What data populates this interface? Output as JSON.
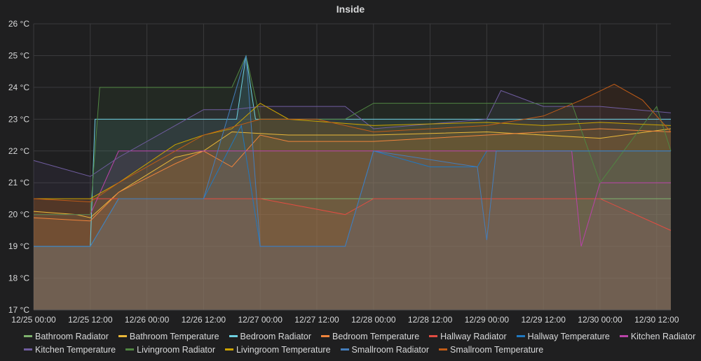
{
  "panel": {
    "title": "Inside"
  },
  "chart_data": {
    "type": "area",
    "title": "Inside",
    "unit": "°C",
    "ylim": [
      17,
      26
    ],
    "y_ticks": [
      "17 °C",
      "18 °C",
      "19 °C",
      "20 °C",
      "21 °C",
      "22 °C",
      "23 °C",
      "24 °C",
      "25 °C",
      "26 °C"
    ],
    "x_ticks": [
      "12/25 00:00",
      "12/25 12:00",
      "12/26 00:00",
      "12/26 12:00",
      "12/27 00:00",
      "12/27 12:00",
      "12/28 00:00",
      "12/28 12:00",
      "12/29 00:00",
      "12/29 12:00",
      "12/30 00:00",
      "12/30 12:00"
    ],
    "x_start": "12/25 00:00",
    "x_end": "12/30 15:00",
    "grid": true,
    "legend_position": "bottom",
    "series": [
      {
        "name": "Bathroom Radiator",
        "color": "#7eb26d",
        "points": [
          [
            "12/25 00:00",
            19
          ],
          [
            "12/25 12:00",
            19
          ],
          [
            "12/25 18:00",
            20.5
          ],
          [
            "12/26 12:00",
            20.5
          ],
          [
            "12/26 18:00",
            20.5
          ],
          [
            "12/27 00:00",
            20.5
          ],
          [
            "12/28 00:00",
            20.5
          ],
          [
            "12/29 00:00",
            20.5
          ],
          [
            "12/30 00:00",
            20.5
          ],
          [
            "12/30 15:00",
            20.5
          ]
        ]
      },
      {
        "name": "Bathroom Temperature",
        "color": "#eab839",
        "points": [
          [
            "12/25 00:00",
            20.1
          ],
          [
            "12/25 09:00",
            20.0
          ],
          [
            "12/25 12:00",
            19.9
          ],
          [
            "12/25 18:00",
            20.7
          ],
          [
            "12/26 06:00",
            21.8
          ],
          [
            "12/26 12:00",
            22.0
          ],
          [
            "12/26 18:00",
            22.6
          ],
          [
            "12/27 06:00",
            22.5
          ],
          [
            "12/28 00:00",
            22.5
          ],
          [
            "12/29 00:00",
            22.6
          ],
          [
            "12/30 00:00",
            22.4
          ],
          [
            "12/30 15:00",
            22.7
          ]
        ]
      },
      {
        "name": "Bedroom Radiator",
        "color": "#6ed0e0",
        "points": [
          [
            "12/25 00:00",
            19
          ],
          [
            "12/25 12:00",
            19
          ],
          [
            "12/25 13:00",
            23.0
          ],
          [
            "12/26 12:00",
            23.0
          ],
          [
            "12/26 19:00",
            23.0
          ],
          [
            "12/26 21:00",
            25.0
          ],
          [
            "12/26 23:00",
            23.0
          ],
          [
            "12/27 06:00",
            23.0
          ],
          [
            "12/28 00:00",
            23.0
          ],
          [
            "12/29 00:00",
            23.0
          ],
          [
            "12/29 12:00",
            23.0
          ],
          [
            "12/30 15:00",
            23.0
          ]
        ]
      },
      {
        "name": "Bedroom Temperature",
        "color": "#ef843c",
        "points": [
          [
            "12/25 00:00",
            19.9
          ],
          [
            "12/25 12:00",
            19.8
          ],
          [
            "12/25 18:00",
            20.7
          ],
          [
            "12/26 06:00",
            21.6
          ],
          [
            "12/26 12:00",
            22.0
          ],
          [
            "12/26 18:00",
            21.5
          ],
          [
            "12/27 00:00",
            22.5
          ],
          [
            "12/27 06:00",
            22.3
          ],
          [
            "12/28 00:00",
            22.3
          ],
          [
            "12/29 00:00",
            22.5
          ],
          [
            "12/30 00:00",
            22.7
          ],
          [
            "12/30 15:00",
            22.6
          ]
        ]
      },
      {
        "name": "Hallway Radiator",
        "color": "#e24d42",
        "points": [
          [
            "12/25 00:00",
            20.5
          ],
          [
            "12/25 12:00",
            20.5
          ],
          [
            "12/26 12:00",
            20.5
          ],
          [
            "12/27 00:00",
            20.5
          ],
          [
            "12/27 18:00",
            20.0
          ],
          [
            "12/28 00:00",
            20.5
          ],
          [
            "12/29 00:00",
            20.5
          ],
          [
            "12/30 00:00",
            20.5
          ],
          [
            "12/30 15:00",
            19.5
          ]
        ]
      },
      {
        "name": "Hallway Temperature",
        "color": "#1f78c1",
        "points": [
          [
            "12/25 00:00",
            19
          ],
          [
            "12/25 12:00",
            19
          ],
          [
            "12/25 18:00",
            20.5
          ],
          [
            "12/26 12:00",
            20.5
          ],
          [
            "12/26 20:00",
            22.8
          ],
          [
            "12/27 00:00",
            19.0
          ],
          [
            "12/27 18:00",
            19.0
          ],
          [
            "12/28 00:00",
            22.0
          ],
          [
            "12/28 12:00",
            21.5
          ],
          [
            "12/28 22:00",
            21.5
          ],
          [
            "12/29 00:00",
            22.0
          ],
          [
            "12/29 12:00",
            22.0
          ],
          [
            "12/30 00:00",
            22.0
          ],
          [
            "12/30 15:00",
            22.0
          ]
        ]
      },
      {
        "name": "Kitchen Radiator",
        "color": "#ba43a9",
        "points": [
          [
            "12/25 00:00",
            20.0
          ],
          [
            "12/25 12:00",
            20.0
          ],
          [
            "12/25 18:00",
            22.0
          ],
          [
            "12/26 12:00",
            22.0
          ],
          [
            "12/27 00:00",
            22.0
          ],
          [
            "12/28 00:00",
            22.0
          ],
          [
            "12/29 00:00",
            22.0
          ],
          [
            "12/29 18:00",
            22.0
          ],
          [
            "12/29 20:00",
            19.0
          ],
          [
            "12/30 00:00",
            21.0
          ],
          [
            "12/30 15:00",
            21.0
          ]
        ]
      },
      {
        "name": "Kitchen Temperature",
        "color": "#705da0",
        "points": [
          [
            "12/25 00:00",
            21.7
          ],
          [
            "12/25 12:00",
            21.2
          ],
          [
            "12/25 18:00",
            21.8
          ],
          [
            "12/26 06:00",
            22.8
          ],
          [
            "12/26 12:00",
            23.3
          ],
          [
            "12/26 18:00",
            23.3
          ],
          [
            "12/27 00:00",
            23.4
          ],
          [
            "12/27 18:00",
            23.4
          ],
          [
            "12/28 00:00",
            22.7
          ],
          [
            "12/29 00:00",
            23.0
          ],
          [
            "12/29 03:00",
            23.9
          ],
          [
            "12/29 12:00",
            23.4
          ],
          [
            "12/30 00:00",
            23.4
          ],
          [
            "12/30 15:00",
            23.2
          ]
        ]
      },
      {
        "name": "Livingroom Radiator",
        "color": "#508642",
        "points": [
          [
            "12/25 00:00",
            20.0
          ],
          [
            "12/25 12:00",
            20.0
          ],
          [
            "12/25 14:00",
            24.0
          ],
          [
            "12/26 18:00",
            24.0
          ],
          [
            "12/26 21:00",
            25.0
          ],
          [
            "12/27 00:00",
            23.0
          ],
          [
            "12/27 18:00",
            23.0
          ],
          [
            "12/28 00:00",
            23.5
          ],
          [
            "12/29 00:00",
            23.5
          ],
          [
            "12/29 18:00",
            23.5
          ],
          [
            "12/30 00:00",
            21.0
          ],
          [
            "12/30 12:00",
            23.4
          ],
          [
            "12/30 15:00",
            22.0
          ]
        ]
      },
      {
        "name": "Livingroom Temperature",
        "color": "#cca300",
        "points": [
          [
            "12/25 00:00",
            20.5
          ],
          [
            "12/25 12:00",
            20.5
          ],
          [
            "12/25 18:00",
            21.0
          ],
          [
            "12/26 06:00",
            22.2
          ],
          [
            "12/26 12:00",
            22.5
          ],
          [
            "12/26 18:00",
            22.7
          ],
          [
            "12/27 00:00",
            23.5
          ],
          [
            "12/27 06:00",
            23.0
          ],
          [
            "12/28 00:00",
            22.8
          ],
          [
            "12/29 00:00",
            22.9
          ],
          [
            "12/29 12:00",
            22.8
          ],
          [
            "12/30 00:00",
            22.9
          ],
          [
            "12/30 15:00",
            22.8
          ]
        ]
      },
      {
        "name": "Smallroom Radiator",
        "color": "#447ebc",
        "points": [
          [
            "12/25 00:00",
            19
          ],
          [
            "12/25 12:00",
            19
          ],
          [
            "12/25 18:00",
            20.5
          ],
          [
            "12/26 12:00",
            20.5
          ],
          [
            "12/26 21:00",
            25.0
          ],
          [
            "12/27 00:00",
            19.0
          ],
          [
            "12/27 18:00",
            19.0
          ],
          [
            "12/28 00:00",
            22.0
          ],
          [
            "12/28 22:00",
            21.5
          ],
          [
            "12/29 00:00",
            19.2
          ],
          [
            "12/29 02:00",
            22.0
          ],
          [
            "12/30 06:00",
            22.0
          ],
          [
            "12/30 15:00",
            22.0
          ]
        ]
      },
      {
        "name": "Smallroom Temperature",
        "color": "#c15c17",
        "points": [
          [
            "12/25 00:00",
            20.5
          ],
          [
            "12/25 12:00",
            20.4
          ],
          [
            "12/25 18:00",
            21.0
          ],
          [
            "12/26 06:00",
            22.0
          ],
          [
            "12/26 12:00",
            22.5
          ],
          [
            "12/27 00:00",
            23.0
          ],
          [
            "12/27 12:00",
            23.0
          ],
          [
            "12/28 00:00",
            22.6
          ],
          [
            "12/29 00:00",
            22.8
          ],
          [
            "12/29 12:00",
            23.1
          ],
          [
            "12/29 20:00",
            23.6
          ],
          [
            "12/30 03:00",
            24.1
          ],
          [
            "12/30 09:00",
            23.6
          ],
          [
            "12/30 15:00",
            22.6
          ]
        ]
      }
    ]
  },
  "legend_rows": [
    [
      "Bathroom Radiator",
      "Bathroom Temperature",
      "Bedroom Radiator",
      "Bedroom Temperature",
      "Hallway Radiator",
      "Hallway Temperature",
      "Kitchen Radiator"
    ],
    [
      "Kitchen Temperature",
      "Livingroom Radiator",
      "Livingroom Temperature",
      "Smallroom Radiator",
      "Smallroom Temperature"
    ]
  ]
}
